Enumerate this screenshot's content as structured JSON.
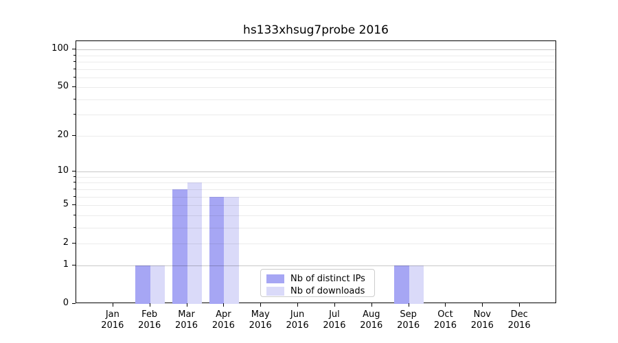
{
  "chart_data": {
    "type": "bar",
    "title": "hs133xhsug7probe 2016",
    "categories": [
      "Jan",
      "Feb",
      "Mar",
      "Apr",
      "May",
      "Jun",
      "Jul",
      "Aug",
      "Sep",
      "Oct",
      "Nov",
      "Dec"
    ],
    "x_year_label": "2016",
    "series": [
      {
        "name": "Nb of distinct IPs",
        "color": "#a6a6f4",
        "values": [
          0,
          1,
          7,
          6,
          0,
          0,
          0,
          0,
          1,
          0,
          0,
          0
        ]
      },
      {
        "name": "Nb of downloads",
        "color": "#dadaf9",
        "values": [
          0,
          1,
          8,
          6,
          0,
          0,
          0,
          0,
          1,
          0,
          0,
          0
        ]
      }
    ],
    "xlabel": "",
    "ylabel": "",
    "yscale": "log1p",
    "ylim": [
      0,
      116.6
    ],
    "yticks": [
      0,
      1,
      2,
      5,
      10,
      20,
      50,
      100
    ],
    "minor_yticks": [
      3,
      4,
      6,
      7,
      8,
      9,
      30,
      40,
      60,
      70,
      80,
      90
    ],
    "major_grid_values": [
      1,
      10,
      100
    ],
    "grid": "on",
    "legend": {
      "location": "lower center"
    }
  }
}
